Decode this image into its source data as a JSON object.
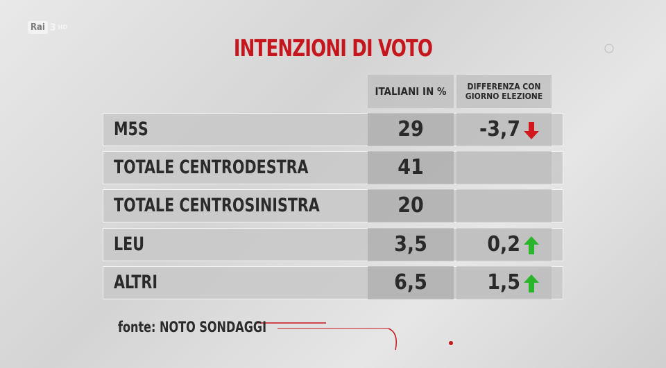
{
  "logo": {
    "name": "Rai",
    "channel": "3",
    "hd": "HD"
  },
  "title": "INTENZIONI DI VOTO",
  "table": {
    "columns": [
      "ITALIANI IN %",
      "DIFFERENZA CON GIORNO ELEZIONE"
    ],
    "rows": [
      {
        "party": "M5S",
        "value": "29",
        "diff": "-3,7"
      },
      {
        "party": "TOTALE CENTRODESTRA",
        "value": "41"
      },
      {
        "party": "TOTALE CENTROSINISTRA",
        "value": "20"
      },
      {
        "party": "LEU",
        "value": "3,5",
        "diff": "0,2"
      },
      {
        "party": "ALTRI",
        "value": "6,5",
        "diff": "1,5"
      }
    ]
  },
  "source": "fonte: NOTO SONDAGGI"
}
